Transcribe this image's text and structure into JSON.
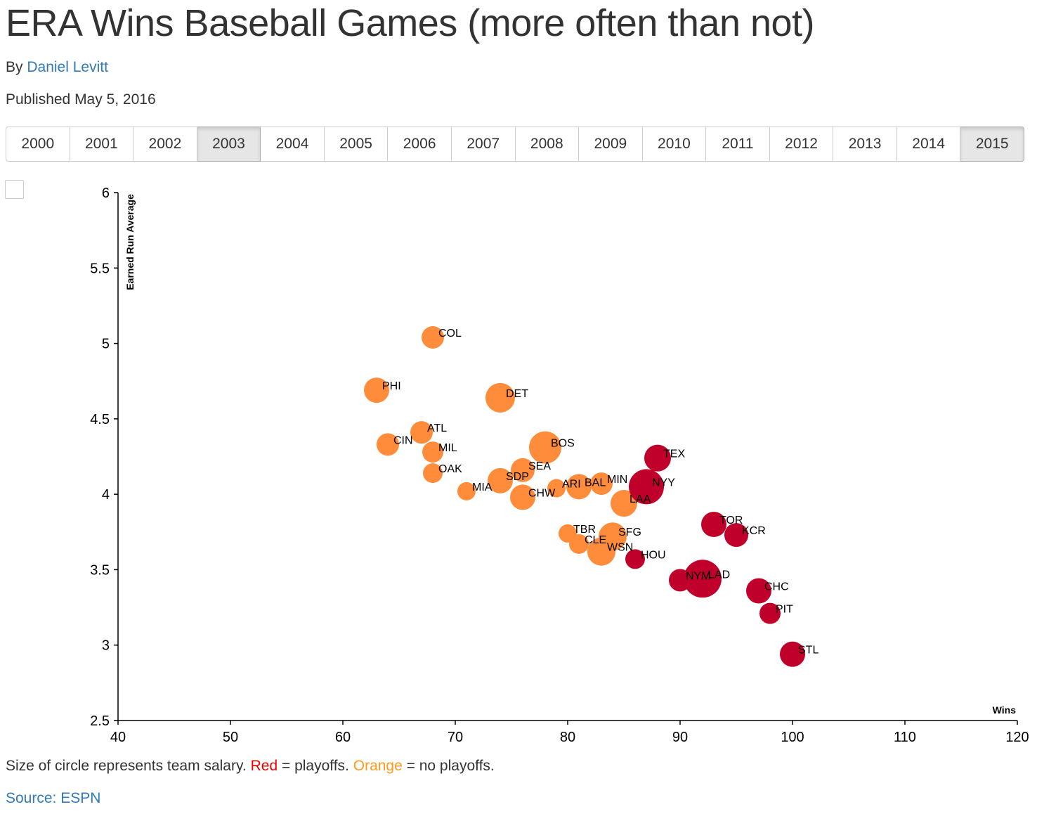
{
  "header": {
    "title": "ERA Wins Baseball Games (more often than not)",
    "by_prefix": "By",
    "author": "Daniel Levitt",
    "published": "Published May 5, 2016"
  },
  "years": [
    "2000",
    "2001",
    "2002",
    "2003",
    "2004",
    "2005",
    "2006",
    "2007",
    "2008",
    "2009",
    "2010",
    "2011",
    "2012",
    "2013",
    "2014",
    "2015"
  ],
  "active_years": [
    "2003",
    "2015"
  ],
  "footer": {
    "caption_size": "Size of circle represents team salary.",
    "caption_red": "Red",
    "caption_red_rest": "= playoffs.",
    "caption_orange": "Orange",
    "caption_orange_rest": "= no playoffs.",
    "source": "Source: ESPN"
  },
  "colors": {
    "playoffs": "#c0002a",
    "no_playoffs": "#ff8c3a",
    "link": "#337ab7"
  },
  "chart_data": {
    "type": "scatter",
    "title": "",
    "xlabel": "Wins",
    "ylabel": "Earned Run Average",
    "xlim": [
      40,
      120
    ],
    "ylim": [
      2.5,
      6
    ],
    "x_ticks": [
      40,
      50,
      60,
      70,
      80,
      90,
      100,
      110,
      120
    ],
    "y_ticks": [
      2.5,
      3,
      3.5,
      4,
      4.5,
      5,
      5.5,
      6
    ],
    "grid": false,
    "size_encodes": "team salary",
    "points": [
      {
        "team": "COL",
        "wins": 68,
        "era": 5.04,
        "playoffs": false,
        "r": 16
      },
      {
        "team": "PHI",
        "wins": 63,
        "era": 4.69,
        "playoffs": false,
        "r": 18
      },
      {
        "team": "DET",
        "wins": 74,
        "era": 4.64,
        "playoffs": false,
        "r": 21
      },
      {
        "team": "ATL",
        "wins": 67,
        "era": 4.41,
        "playoffs": false,
        "r": 16
      },
      {
        "team": "CIN",
        "wins": 64,
        "era": 4.33,
        "playoffs": false,
        "r": 16
      },
      {
        "team": "MIL",
        "wins": 68,
        "era": 4.28,
        "playoffs": false,
        "r": 15
      },
      {
        "team": "BOS",
        "wins": 78,
        "era": 4.31,
        "playoffs": false,
        "r": 23
      },
      {
        "team": "TEX",
        "wins": 88,
        "era": 4.24,
        "playoffs": true,
        "r": 19
      },
      {
        "team": "SEA",
        "wins": 76,
        "era": 4.16,
        "playoffs": false,
        "r": 17
      },
      {
        "team": "OAK",
        "wins": 68,
        "era": 4.14,
        "playoffs": false,
        "r": 14
      },
      {
        "team": "SDP",
        "wins": 74,
        "era": 4.09,
        "playoffs": false,
        "r": 18
      },
      {
        "team": "MIN",
        "wins": 83,
        "era": 4.07,
        "playoffs": false,
        "r": 16
      },
      {
        "team": "NYY",
        "wins": 87,
        "era": 4.05,
        "playoffs": true,
        "r": 25
      },
      {
        "team": "ARI",
        "wins": 79,
        "era": 4.04,
        "playoffs": false,
        "r": 13
      },
      {
        "team": "BAL",
        "wins": 81,
        "era": 4.05,
        "playoffs": false,
        "r": 18
      },
      {
        "team": "MIA",
        "wins": 71,
        "era": 4.02,
        "playoffs": false,
        "r": 13
      },
      {
        "team": "CHW",
        "wins": 76,
        "era": 3.98,
        "playoffs": false,
        "r": 18
      },
      {
        "team": "LAA",
        "wins": 85,
        "era": 3.94,
        "playoffs": false,
        "r": 19
      },
      {
        "team": "TOR",
        "wins": 93,
        "era": 3.8,
        "playoffs": true,
        "r": 18
      },
      {
        "team": "KCR",
        "wins": 95,
        "era": 3.73,
        "playoffs": true,
        "r": 17
      },
      {
        "team": "TBR",
        "wins": 80,
        "era": 3.74,
        "playoffs": false,
        "r": 13
      },
      {
        "team": "SFG",
        "wins": 84,
        "era": 3.72,
        "playoffs": false,
        "r": 20
      },
      {
        "team": "CLE",
        "wins": 81,
        "era": 3.67,
        "playoffs": false,
        "r": 14
      },
      {
        "team": "WSN",
        "wins": 83,
        "era": 3.62,
        "playoffs": false,
        "r": 20
      },
      {
        "team": "HOU",
        "wins": 86,
        "era": 3.57,
        "playoffs": true,
        "r": 14
      },
      {
        "team": "NYM",
        "wins": 90,
        "era": 3.43,
        "playoffs": true,
        "r": 16
      },
      {
        "team": "LAD",
        "wins": 92,
        "era": 3.44,
        "playoffs": true,
        "r": 27
      },
      {
        "team": "CHC",
        "wins": 97,
        "era": 3.36,
        "playoffs": true,
        "r": 18
      },
      {
        "team": "PIT",
        "wins": 98,
        "era": 3.21,
        "playoffs": true,
        "r": 15
      },
      {
        "team": "STL",
        "wins": 100,
        "era": 2.94,
        "playoffs": true,
        "r": 18
      }
    ]
  }
}
